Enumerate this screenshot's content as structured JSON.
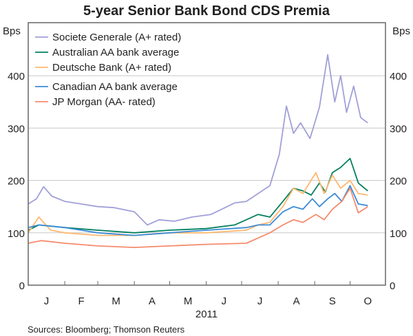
{
  "chart_data": {
    "type": "line",
    "title": "5-year Senior Bank Bond CDS Premia",
    "ylabel_left": "Bps",
    "ylabel_right": "Bps",
    "xlabel": "2011",
    "ylim": [
      0,
      450
    ],
    "yticks": [
      0,
      100,
      200,
      300,
      400
    ],
    "xlim": [
      "2011-01-01",
      "2011-10-31"
    ],
    "month_labels": [
      "J",
      "F",
      "M",
      "A",
      "M",
      "J",
      "J",
      "A",
      "S",
      "O"
    ],
    "grid": true,
    "legend_placement": "top-left",
    "source": "Sources: Bloomberg; Thomson Reuters",
    "series": [
      {
        "name": "Societe Generale (A+ rated)",
        "color": "#a09fd8",
        "points": [
          [
            "2011-01-01",
            155
          ],
          [
            "2011-01-08",
            165
          ],
          [
            "2011-01-14",
            188
          ],
          [
            "2011-01-21",
            170
          ],
          [
            "2011-02-01",
            160
          ],
          [
            "2011-02-15",
            155
          ],
          [
            "2011-03-01",
            150
          ],
          [
            "2011-03-15",
            148
          ],
          [
            "2011-04-01",
            140
          ],
          [
            "2011-04-12",
            115
          ],
          [
            "2011-04-22",
            125
          ],
          [
            "2011-05-05",
            122
          ],
          [
            "2011-05-20",
            130
          ],
          [
            "2011-06-05",
            135
          ],
          [
            "2011-06-25",
            157
          ],
          [
            "2011-07-05",
            160
          ],
          [
            "2011-07-15",
            175
          ],
          [
            "2011-07-25",
            190
          ],
          [
            "2011-08-02",
            250
          ],
          [
            "2011-08-08",
            342
          ],
          [
            "2011-08-14",
            290
          ],
          [
            "2011-08-20",
            310
          ],
          [
            "2011-08-28",
            280
          ],
          [
            "2011-09-05",
            340
          ],
          [
            "2011-09-12",
            440
          ],
          [
            "2011-09-18",
            350
          ],
          [
            "2011-09-23",
            400
          ],
          [
            "2011-09-28",
            330
          ],
          [
            "2011-10-04",
            380
          ],
          [
            "2011-10-10",
            320
          ],
          [
            "2011-10-16",
            310
          ]
        ]
      },
      {
        "name": "Australian AA bank average",
        "color": "#00805e",
        "points": [
          [
            "2011-01-01",
            105
          ],
          [
            "2011-01-10",
            115
          ],
          [
            "2011-02-01",
            110
          ],
          [
            "2011-03-01",
            105
          ],
          [
            "2011-04-01",
            100
          ],
          [
            "2011-05-01",
            105
          ],
          [
            "2011-06-01",
            108
          ],
          [
            "2011-06-25",
            115
          ],
          [
            "2011-07-05",
            125
          ],
          [
            "2011-07-15",
            135
          ],
          [
            "2011-07-25",
            130
          ],
          [
            "2011-08-05",
            160
          ],
          [
            "2011-08-14",
            185
          ],
          [
            "2011-08-22",
            180
          ],
          [
            "2011-08-29",
            172
          ],
          [
            "2011-09-05",
            195
          ],
          [
            "2011-09-10",
            178
          ],
          [
            "2011-09-16",
            215
          ],
          [
            "2011-09-23",
            225
          ],
          [
            "2011-10-01",
            242
          ],
          [
            "2011-10-08",
            195
          ],
          [
            "2011-10-16",
            180
          ]
        ]
      },
      {
        "name": "Deutsche Bank (A+ rated)",
        "color": "#ffb86e",
        "points": [
          [
            "2011-01-01",
            100
          ],
          [
            "2011-01-10",
            130
          ],
          [
            "2011-01-20",
            105
          ],
          [
            "2011-02-01",
            100
          ],
          [
            "2011-03-01",
            95
          ],
          [
            "2011-04-01",
            95
          ],
          [
            "2011-05-01",
            100
          ],
          [
            "2011-06-01",
            100
          ],
          [
            "2011-07-05",
            105
          ],
          [
            "2011-07-15",
            115
          ],
          [
            "2011-07-25",
            120
          ],
          [
            "2011-08-05",
            150
          ],
          [
            "2011-08-14",
            185
          ],
          [
            "2011-08-22",
            175
          ],
          [
            "2011-09-02",
            215
          ],
          [
            "2011-09-09",
            175
          ],
          [
            "2011-09-16",
            210
          ],
          [
            "2011-09-23",
            185
          ],
          [
            "2011-10-01",
            200
          ],
          [
            "2011-10-08",
            175
          ],
          [
            "2011-10-16",
            172
          ]
        ]
      },
      {
        "name": "Canadian AA bank average",
        "color": "#3a8bd6",
        "points": [
          [
            "2011-01-01",
            110
          ],
          [
            "2011-01-10",
            115
          ],
          [
            "2011-02-01",
            110
          ],
          [
            "2011-02-15",
            105
          ],
          [
            "2011-03-01",
            100
          ],
          [
            "2011-04-01",
            95
          ],
          [
            "2011-05-01",
            100
          ],
          [
            "2011-06-01",
            105
          ],
          [
            "2011-07-05",
            110
          ],
          [
            "2011-07-15",
            115
          ],
          [
            "2011-07-25",
            115
          ],
          [
            "2011-08-05",
            140
          ],
          [
            "2011-08-14",
            150
          ],
          [
            "2011-08-22",
            145
          ],
          [
            "2011-08-30",
            165
          ],
          [
            "2011-09-05",
            150
          ],
          [
            "2011-09-12",
            165
          ],
          [
            "2011-09-18",
            175
          ],
          [
            "2011-09-24",
            160
          ],
          [
            "2011-10-01",
            190
          ],
          [
            "2011-10-08",
            155
          ],
          [
            "2011-10-16",
            152
          ]
        ]
      },
      {
        "name": "JP Morgan (AA- rated)",
        "color": "#f58b6c",
        "points": [
          [
            "2011-01-01",
            80
          ],
          [
            "2011-01-12",
            85
          ],
          [
            "2011-02-01",
            80
          ],
          [
            "2011-03-01",
            75
          ],
          [
            "2011-04-01",
            72
          ],
          [
            "2011-05-01",
            75
          ],
          [
            "2011-06-01",
            78
          ],
          [
            "2011-07-05",
            80
          ],
          [
            "2011-07-15",
            90
          ],
          [
            "2011-07-25",
            100
          ],
          [
            "2011-08-05",
            115
          ],
          [
            "2011-08-14",
            125
          ],
          [
            "2011-08-22",
            120
          ],
          [
            "2011-09-02",
            135
          ],
          [
            "2011-09-09",
            125
          ],
          [
            "2011-09-16",
            145
          ],
          [
            "2011-09-24",
            160
          ],
          [
            "2011-10-01",
            185
          ],
          [
            "2011-10-08",
            138
          ],
          [
            "2011-10-16",
            150
          ]
        ]
      }
    ]
  }
}
